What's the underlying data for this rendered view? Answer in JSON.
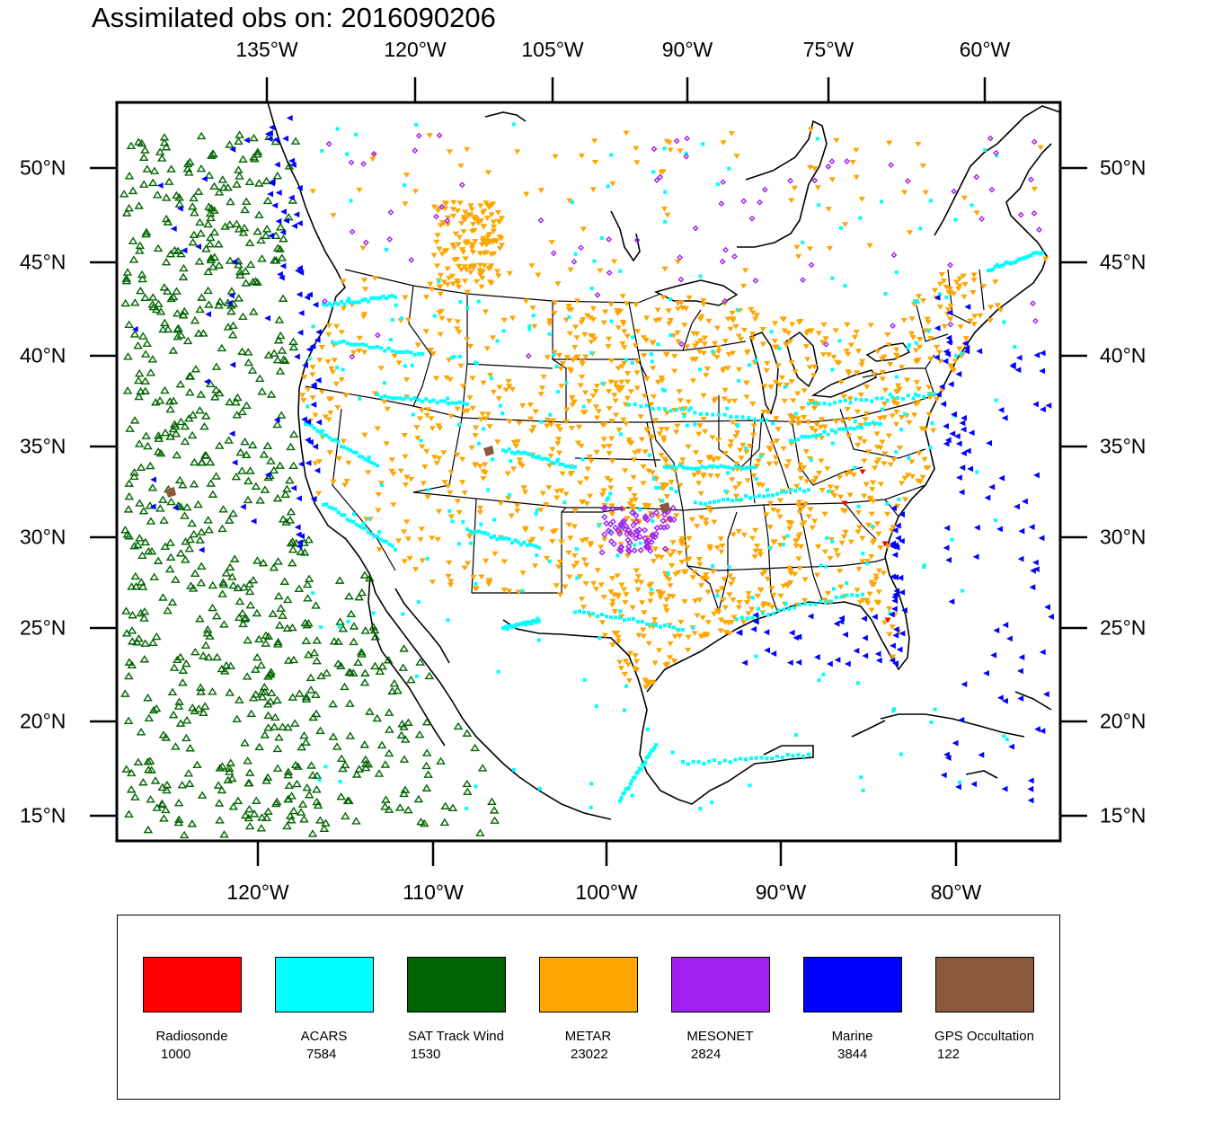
{
  "title": "Assimilated obs on: 2016090206",
  "top_axis_labels": [
    "135°W",
    "120°W",
    "105°W",
    "90°W",
    "75°W",
    "60°W"
  ],
  "bottom_axis_labels": [
    "120°W",
    "110°W",
    "100°W",
    "90°W",
    "80°W"
  ],
  "lat_labels": [
    "50°N",
    "45°N",
    "40°N",
    "35°N",
    "30°N",
    "25°N",
    "20°N",
    "15°N"
  ],
  "legend": [
    {
      "name": "Radiosonde",
      "count": "1000",
      "color": "#ff0000"
    },
    {
      "name": "ACARS",
      "count": "7584",
      "color": "#00ffff"
    },
    {
      "name": "SAT Track Wind",
      "count": "1530",
      "color": "#006400"
    },
    {
      "name": "METAR",
      "count": "23022",
      "color": "#ffa500"
    },
    {
      "name": "MESONET",
      "count": "2824",
      "color": "#a020f0"
    },
    {
      "name": "Marine",
      "count": "3844",
      "color": "#0000ff"
    },
    {
      "name": "GPS Occultation",
      "count": "122",
      "color": "#8b5a3c"
    }
  ],
  "map_region": "Contiguous United States, northern Mexico, Caribbean and eastern Pacific"
}
